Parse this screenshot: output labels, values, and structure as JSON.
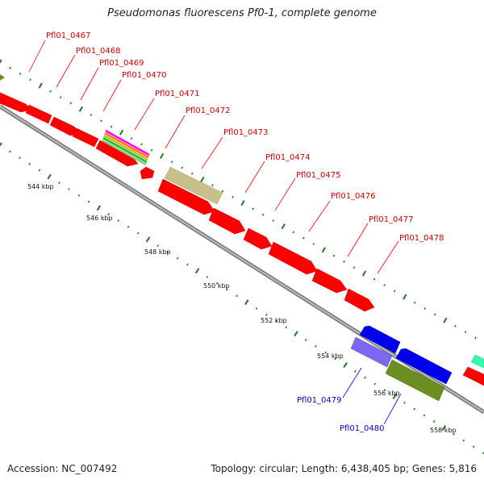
{
  "title": "Pseudomonas fluorescens Pf0-1, complete genome",
  "colors": {
    "forward_gene": "#ff0000",
    "reverse_gene": "#0000ee",
    "gene_label_forward": "#cc0000",
    "gene_label_reverse": "#0000cc",
    "tick": "#1a7a1a",
    "backbone": "#888888",
    "misc_feature": "#c8c08a",
    "olive_feature": "#6b8e23",
    "purple_feature": "#7b68ee"
  },
  "gene_labels_forward": [
    "Pfl01_0467",
    "Pfl01_0468",
    "Pfl01_0469",
    "Pfl01_0470",
    "Pfl01_0471",
    "Pfl01_0472",
    "Pfl01_0473",
    "Pfl01_0474",
    "Pfl01_0475",
    "Pfl01_0476",
    "Pfl01_0477",
    "Pfl01_0478"
  ],
  "gene_labels_reverse": [
    "Pfl01_0479",
    "Pfl01_0480"
  ],
  "kbp_labels": [
    "544 kbp",
    "546 kbp",
    "548 kbp",
    "550 kbp",
    "552 kbp",
    "554 kbp",
    "556 kbp",
    "558 kbp"
  ],
  "footer": {
    "accession": "Accession: NC_007492",
    "summary": "Topology: circular; Length: 6,438,405 bp; Genes: 5,816"
  }
}
